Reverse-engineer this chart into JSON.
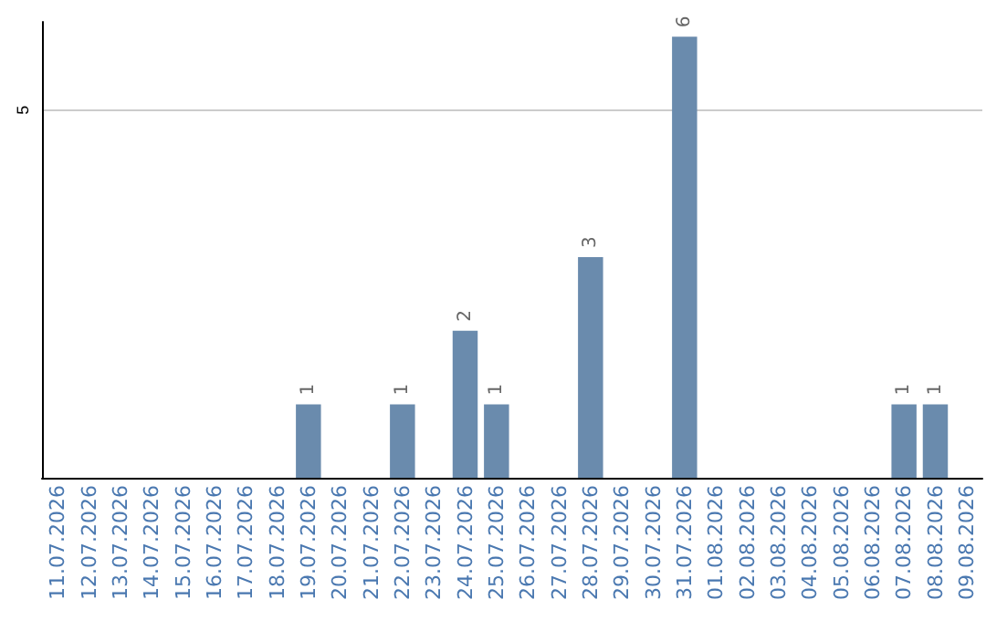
{
  "chart_data": {
    "type": "bar",
    "categories": [
      "11.07.2026",
      "12.07.2026",
      "13.07.2026",
      "14.07.2026",
      "15.07.2026",
      "16.07.2026",
      "17.07.2026",
      "18.07.2026",
      "19.07.2026",
      "20.07.2026",
      "21.07.2026",
      "22.07.2026",
      "23.07.2026",
      "24.07.2026",
      "25.07.2026",
      "26.07.2026",
      "27.07.2026",
      "28.07.2026",
      "29.07.2026",
      "30.07.2026",
      "31.07.2026",
      "01.08.2026",
      "02.08.2026",
      "03.08.2026",
      "04.08.2026",
      "05.08.2026",
      "06.08.2026",
      "07.08.2026",
      "08.08.2026",
      "09.08.2026"
    ],
    "values": [
      0,
      0,
      0,
      0,
      0,
      0,
      0,
      0,
      1,
      0,
      0,
      1,
      0,
      2,
      1,
      0,
      0,
      3,
      0,
      0,
      6,
      0,
      0,
      0,
      0,
      0,
      0,
      1,
      1,
      0
    ],
    "color": "#6a8bad",
    "value_labels": [
      null,
      null,
      null,
      null,
      null,
      null,
      null,
      null,
      "1",
      null,
      null,
      "1",
      null,
      "2",
      "1",
      null,
      null,
      "3",
      null,
      null,
      "6",
      null,
      null,
      null,
      null,
      null,
      null,
      "1",
      "1",
      null
    ],
    "ylim": [
      0,
      6.2
    ],
    "yticks": [
      5
    ],
    "grid": "y"
  }
}
